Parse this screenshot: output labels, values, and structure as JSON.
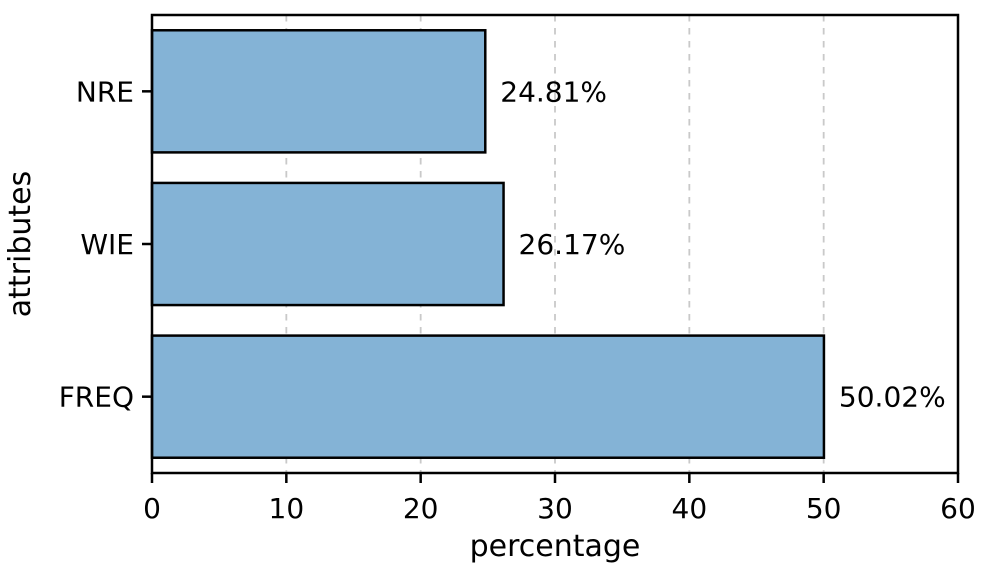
{
  "chart_data": {
    "type": "bar",
    "orientation": "horizontal",
    "title": "",
    "categories": [
      "NRE",
      "WIE",
      "FREQ"
    ],
    "values": [
      24.81,
      26.17,
      50.02
    ],
    "value_labels": [
      "24.81%",
      "26.17%",
      "50.02%"
    ],
    "xlabel": "percentage",
    "ylabel": "attributes",
    "xlim": [
      0,
      60
    ],
    "xticks": [
      0,
      10,
      20,
      30,
      40,
      50,
      60
    ],
    "xtick_labels": [
      "0",
      "10",
      "20",
      "30",
      "40",
      "50",
      "60"
    ],
    "grid": "vertical-dashed",
    "legend": "none",
    "colors": {
      "bar_fill": "#84b3d6",
      "bar_edge": "#000000",
      "gridline": "#c9c9c9",
      "spine": "#000000",
      "text": "#000000",
      "background": "#ffffff"
    }
  }
}
